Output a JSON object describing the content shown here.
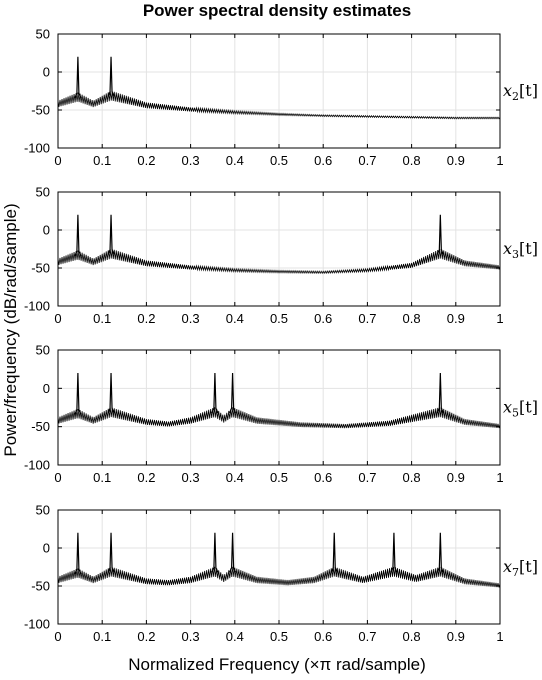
{
  "figure": {
    "title": "Power spectral density estimates",
    "xlabel": "Normalized Frequency  (×π rad/sample)",
    "ylabel": "Power/frequency (dB/rad/sample)"
  },
  "chart_data": [
    {
      "type": "line",
      "signal_label": {
        "base": "x",
        "sub": "2",
        "arg": "[t]"
      },
      "xlim": [
        0,
        1
      ],
      "ylim": [
        -100,
        50
      ],
      "xticks": [
        0,
        0.1,
        0.2,
        0.3,
        0.4,
        0.5,
        0.6,
        0.7,
        0.8,
        0.9,
        1
      ],
      "xtick_labels": [
        "0",
        "0.1",
        "0.2",
        "0.3",
        "0.4",
        "0.5",
        "0.6",
        "0.7",
        "0.8",
        "0.9",
        "1"
      ],
      "yticks": [
        50,
        0,
        -50,
        -100
      ],
      "ytick_labels": [
        "50",
        "0",
        "-50",
        "-100"
      ],
      "grid": true,
      "peaks": [
        {
          "x": 0.045,
          "y": 20
        },
        {
          "x": 0.12,
          "y": 20
        }
      ],
      "envelope": [
        [
          0,
          -40
        ],
        [
          0.045,
          -30
        ],
        [
          0.08,
          -40
        ],
        [
          0.12,
          -28
        ],
        [
          0.2,
          -42
        ],
        [
          0.3,
          -48
        ],
        [
          0.4,
          -52
        ],
        [
          0.5,
          -55
        ],
        [
          0.6,
          -57
        ],
        [
          0.7,
          -58
        ],
        [
          0.8,
          -59
        ],
        [
          0.9,
          -60
        ],
        [
          1,
          -60
        ]
      ]
    },
    {
      "type": "line",
      "signal_label": {
        "base": "x",
        "sub": "3",
        "arg": "[t]"
      },
      "xlim": [
        0,
        1
      ],
      "ylim": [
        -100,
        50
      ],
      "xticks": [
        0,
        0.1,
        0.2,
        0.3,
        0.4,
        0.5,
        0.6,
        0.7,
        0.8,
        0.9,
        1
      ],
      "xtick_labels": [
        "0",
        "0.1",
        "0.2",
        "0.3",
        "0.4",
        "0.5",
        "0.6",
        "0.7",
        "0.8",
        "0.9",
        "1"
      ],
      "yticks": [
        50,
        0,
        -50,
        -100
      ],
      "ytick_labels": [
        "50",
        "0",
        "-50",
        "-100"
      ],
      "grid": true,
      "peaks": [
        {
          "x": 0.045,
          "y": 20
        },
        {
          "x": 0.12,
          "y": 20
        },
        {
          "x": 0.865,
          "y": 20
        }
      ],
      "envelope": [
        [
          0,
          -40
        ],
        [
          0.045,
          -30
        ],
        [
          0.08,
          -40
        ],
        [
          0.12,
          -28
        ],
        [
          0.2,
          -42
        ],
        [
          0.3,
          -48
        ],
        [
          0.4,
          -52
        ],
        [
          0.5,
          -54
        ],
        [
          0.6,
          -55
        ],
        [
          0.7,
          -52
        ],
        [
          0.8,
          -45
        ],
        [
          0.865,
          -28
        ],
        [
          0.92,
          -42
        ],
        [
          1,
          -48
        ]
      ]
    },
    {
      "type": "line",
      "signal_label": {
        "base": "x",
        "sub": "5",
        "arg": "[t]"
      },
      "xlim": [
        0,
        1
      ],
      "ylim": [
        -100,
        50
      ],
      "xticks": [
        0,
        0.1,
        0.2,
        0.3,
        0.4,
        0.5,
        0.6,
        0.7,
        0.8,
        0.9,
        1
      ],
      "xtick_labels": [
        "0",
        "0.1",
        "0.2",
        "0.3",
        "0.4",
        "0.5",
        "0.6",
        "0.7",
        "0.8",
        "0.9",
        "1"
      ],
      "yticks": [
        50,
        0,
        -50,
        -100
      ],
      "ytick_labels": [
        "50",
        "0",
        "-50",
        "-100"
      ],
      "grid": true,
      "peaks": [
        {
          "x": 0.045,
          "y": 20
        },
        {
          "x": 0.12,
          "y": 20
        },
        {
          "x": 0.355,
          "y": 20
        },
        {
          "x": 0.395,
          "y": 20
        },
        {
          "x": 0.865,
          "y": 20
        }
      ],
      "envelope": [
        [
          0,
          -40
        ],
        [
          0.045,
          -30
        ],
        [
          0.08,
          -40
        ],
        [
          0.12,
          -28
        ],
        [
          0.2,
          -42
        ],
        [
          0.25,
          -45
        ],
        [
          0.3,
          -40
        ],
        [
          0.355,
          -28
        ],
        [
          0.375,
          -38
        ],
        [
          0.395,
          -28
        ],
        [
          0.45,
          -40
        ],
        [
          0.55,
          -46
        ],
        [
          0.65,
          -48
        ],
        [
          0.75,
          -44
        ],
        [
          0.865,
          -28
        ],
        [
          0.92,
          -42
        ],
        [
          1,
          -48
        ]
      ]
    },
    {
      "type": "line",
      "signal_label": {
        "base": "x",
        "sub": "7",
        "arg": "[t]"
      },
      "xlim": [
        0,
        1
      ],
      "ylim": [
        -100,
        50
      ],
      "xticks": [
        0,
        0.1,
        0.2,
        0.3,
        0.4,
        0.5,
        0.6,
        0.7,
        0.8,
        0.9,
        1
      ],
      "xtick_labels": [
        "0",
        "0.1",
        "0.2",
        "0.3",
        "0.4",
        "0.5",
        "0.6",
        "0.7",
        "0.8",
        "0.9",
        "1"
      ],
      "yticks": [
        50,
        0,
        -50,
        -100
      ],
      "ytick_labels": [
        "50",
        "0",
        "-50",
        "-100"
      ],
      "grid": true,
      "peaks": [
        {
          "x": 0.045,
          "y": 20
        },
        {
          "x": 0.12,
          "y": 20
        },
        {
          "x": 0.355,
          "y": 20
        },
        {
          "x": 0.395,
          "y": 20
        },
        {
          "x": 0.625,
          "y": 20
        },
        {
          "x": 0.76,
          "y": 20
        },
        {
          "x": 0.865,
          "y": 20
        }
      ],
      "envelope": [
        [
          0,
          -40
        ],
        [
          0.045,
          -30
        ],
        [
          0.08,
          -40
        ],
        [
          0.12,
          -28
        ],
        [
          0.2,
          -42
        ],
        [
          0.25,
          -44
        ],
        [
          0.3,
          -40
        ],
        [
          0.355,
          -28
        ],
        [
          0.375,
          -38
        ],
        [
          0.395,
          -28
        ],
        [
          0.45,
          -40
        ],
        [
          0.52,
          -44
        ],
        [
          0.58,
          -40
        ],
        [
          0.625,
          -28
        ],
        [
          0.69,
          -40
        ],
        [
          0.76,
          -28
        ],
        [
          0.81,
          -38
        ],
        [
          0.865,
          -28
        ],
        [
          0.92,
          -42
        ],
        [
          1,
          -48
        ]
      ]
    }
  ]
}
